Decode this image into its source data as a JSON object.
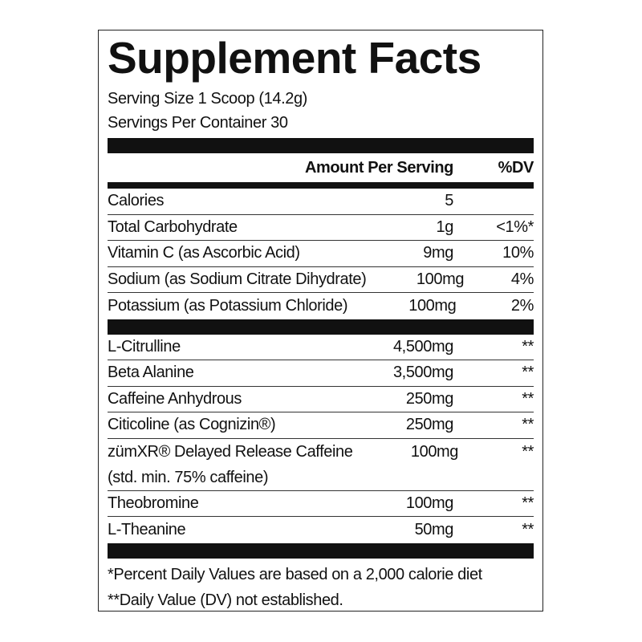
{
  "title": "Supplement Facts",
  "serving_size": "Serving Size 1 Scoop (14.2g)",
  "servings_per_container": "Servings Per Container 30",
  "header": {
    "amount": "Amount Per Serving",
    "dv": "%DV"
  },
  "nutrients": [
    {
      "name": "Calories",
      "amount": "5",
      "dv": ""
    },
    {
      "name": "Total Carbohydrate",
      "amount": "1g",
      "dv": "<1%*"
    },
    {
      "name": "Vitamin C (as Ascorbic Acid)",
      "amount": "9mg",
      "dv": "10%"
    },
    {
      "name": "Sodium (as Sodium Citrate Dihydrate)",
      "amount": "100mg",
      "dv": "4%"
    },
    {
      "name": "Potassium (as Potassium Chloride)",
      "amount": "100mg",
      "dv": "2%"
    }
  ],
  "ingredients": [
    {
      "name": "L-Citrulline",
      "amount": "4,500mg",
      "dv": "**"
    },
    {
      "name": "Beta Alanine",
      "amount": "3,500mg",
      "dv": "**"
    },
    {
      "name": "Caffeine Anhydrous",
      "amount": "250mg",
      "dv": "**"
    },
    {
      "name": "Citicoline (as Cognizin®)",
      "amount": "250mg",
      "dv": "**"
    },
    {
      "name": "zümXR® Delayed Release Caffeine",
      "name2": "(std. min. 75% caffeine)",
      "amount": "100mg",
      "dv": "**"
    },
    {
      "name": "Theobromine",
      "amount": "100mg",
      "dv": "**"
    },
    {
      "name": "L-Theanine",
      "amount": "50mg",
      "dv": "**"
    }
  ],
  "footnotes": [
    "*Percent Daily Values are based on a 2,000 calorie diet",
    "**Daily Value (DV) not established."
  ]
}
